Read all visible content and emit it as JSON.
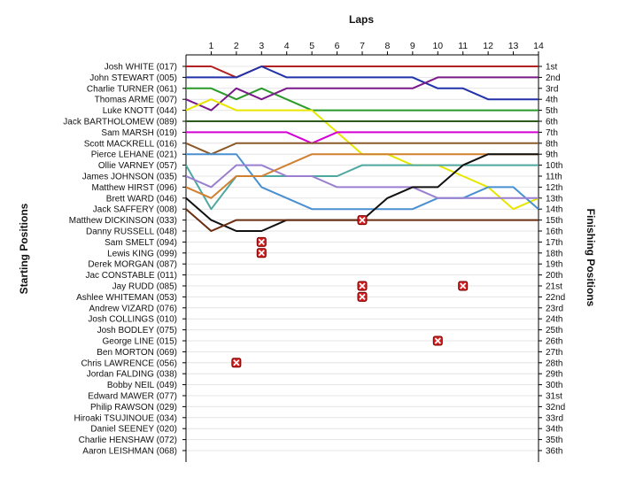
{
  "chart_data": {
    "type": "line",
    "title": "",
    "xlabel": "Laps",
    "ylabel_left": "Starting Positions",
    "ylabel_right": "Finishing Positions",
    "x_ticks": [
      1,
      2,
      3,
      4,
      5,
      6,
      7,
      8,
      9,
      10,
      11,
      12,
      13,
      14
    ],
    "starting_grid": [
      "Josh WHITE (017)",
      "John STEWART (005)",
      "Charlie TURNER (061)",
      "Thomas ARME (007)",
      "Luke KNOTT (044)",
      "Jack BARTHOLOMEW (089)",
      "Sam MARSH (019)",
      "Scott MACKRELL (016)",
      "Pierce LEHANE (021)",
      "Ollie VARNEY (057)",
      "James JOHNSON (035)",
      "Matthew HIRST (096)",
      "Brett WARD (046)",
      "Jack SAFFERY (008)",
      "Matthew DICKINSON (033)",
      "Danny RUSSELL (048)",
      "Sam SMELT (094)",
      "Lewis KING (099)",
      "Derek MORGAN (087)",
      "Jac CONSTABLE (011)",
      "Jay RUDD (085)",
      "Ashlee WHITEMAN (053)",
      "Andrew VIZARD (076)",
      "Josh COLLINGS (010)",
      "Josh BODLEY (075)",
      "George LINE (015)",
      "Ben MORTON (069)",
      "Chris LAWRENCE (056)",
      "Jordan FALDING (038)",
      "Bobby NEIL (049)",
      "Edward MAWER (077)",
      "Philip RAWSON (029)",
      "Hiroaki TSUJINOUE (034)",
      "Daniel SEENEY (020)",
      "Charlie HENSHAW (072)",
      "Aaron LEISHMAN (068)"
    ],
    "finishing_labels": [
      "1st",
      "2nd",
      "3rd",
      "4th",
      "5th",
      "6th",
      "7th",
      "8th",
      "9th",
      "10th",
      "11th",
      "12th",
      "13th",
      "14th",
      "15th",
      "16th",
      "17th",
      "18th",
      "19th",
      "20th",
      "21st",
      "22nd",
      "23rd",
      "24th",
      "25th",
      "26th",
      "27th",
      "28th",
      "29th",
      "30th",
      "31st",
      "32nd",
      "33rd",
      "34th",
      "35th",
      "36th"
    ],
    "series": [
      {
        "color": "#b22222",
        "positions": [
          1,
          1,
          2,
          1,
          1,
          1,
          1,
          1,
          1,
          1,
          1,
          1,
          1,
          1,
          1
        ]
      },
      {
        "color": "#2233aa",
        "positions": [
          2,
          2,
          2,
          1,
          2,
          2,
          2,
          2,
          2,
          2,
          3,
          3,
          4,
          4,
          4
        ]
      },
      {
        "color": "#2a9a2a",
        "positions": [
          3,
          3,
          4,
          3,
          4,
          5,
          5,
          5,
          5,
          5,
          5,
          5,
          5,
          5,
          5
        ]
      },
      {
        "color": "#7a1a8a",
        "positions": [
          4,
          5,
          3,
          4,
          3,
          3,
          3,
          3,
          3,
          3,
          2,
          2,
          2,
          2,
          2
        ]
      },
      {
        "color": "#e6e600",
        "positions": [
          5,
          4,
          5,
          5,
          5,
          5,
          7,
          9,
          9,
          10,
          10,
          11,
          12,
          14,
          13
        ]
      },
      {
        "color": "#2c5a1a",
        "positions": [
          6,
          6,
          6,
          6,
          6,
          6,
          6,
          6,
          6,
          6,
          6,
          6,
          6,
          6,
          6
        ]
      },
      {
        "color": "#d400d4",
        "positions": [
          7,
          7,
          7,
          7,
          7,
          8,
          7,
          7,
          7,
          7,
          7,
          7,
          7,
          7,
          7
        ]
      },
      {
        "color": "#8b5a2b",
        "positions": [
          8,
          9,
          8,
          8,
          8,
          8,
          8,
          8,
          8,
          8,
          8,
          8,
          8,
          8,
          8
        ]
      },
      {
        "color": "#4a90d0",
        "positions": [
          9,
          9,
          9,
          12,
          13,
          14,
          14,
          14,
          14,
          14,
          13,
          13,
          12,
          12,
          14
        ]
      },
      {
        "color": "#4fa8a0",
        "positions": [
          10,
          14,
          11,
          11,
          11,
          11,
          11,
          10,
          10,
          10,
          10,
          10,
          10,
          10,
          10
        ]
      },
      {
        "color": "#9a7fd0",
        "positions": [
          11,
          12,
          10,
          10,
          11,
          11,
          12,
          12,
          12,
          12,
          13,
          13,
          13,
          13,
          13
        ]
      },
      {
        "color": "#d08030",
        "positions": [
          12,
          13,
          11,
          11,
          10,
          9,
          9,
          9,
          9,
          9,
          9,
          9,
          9,
          9,
          9
        ]
      },
      {
        "color": "#111111",
        "positions": [
          13,
          15,
          16,
          16,
          15,
          15,
          15,
          15,
          13,
          12,
          12,
          10,
          9,
          9,
          9
        ]
      },
      {
        "color": "#6b2d0f",
        "positions": [
          14,
          16,
          15,
          15,
          15,
          15,
          15,
          15,
          15,
          15,
          15,
          15,
          15,
          15,
          15
        ]
      }
    ],
    "retirements": [
      {
        "lap": 2,
        "position": 28
      },
      {
        "lap": 3,
        "position": 17
      },
      {
        "lap": 3,
        "position": 18
      },
      {
        "lap": 7,
        "position": 15
      },
      {
        "lap": 7,
        "position": 21
      },
      {
        "lap": 7,
        "position": 22
      },
      {
        "lap": 10,
        "position": 26
      },
      {
        "lap": 11,
        "position": 21
      }
    ]
  }
}
